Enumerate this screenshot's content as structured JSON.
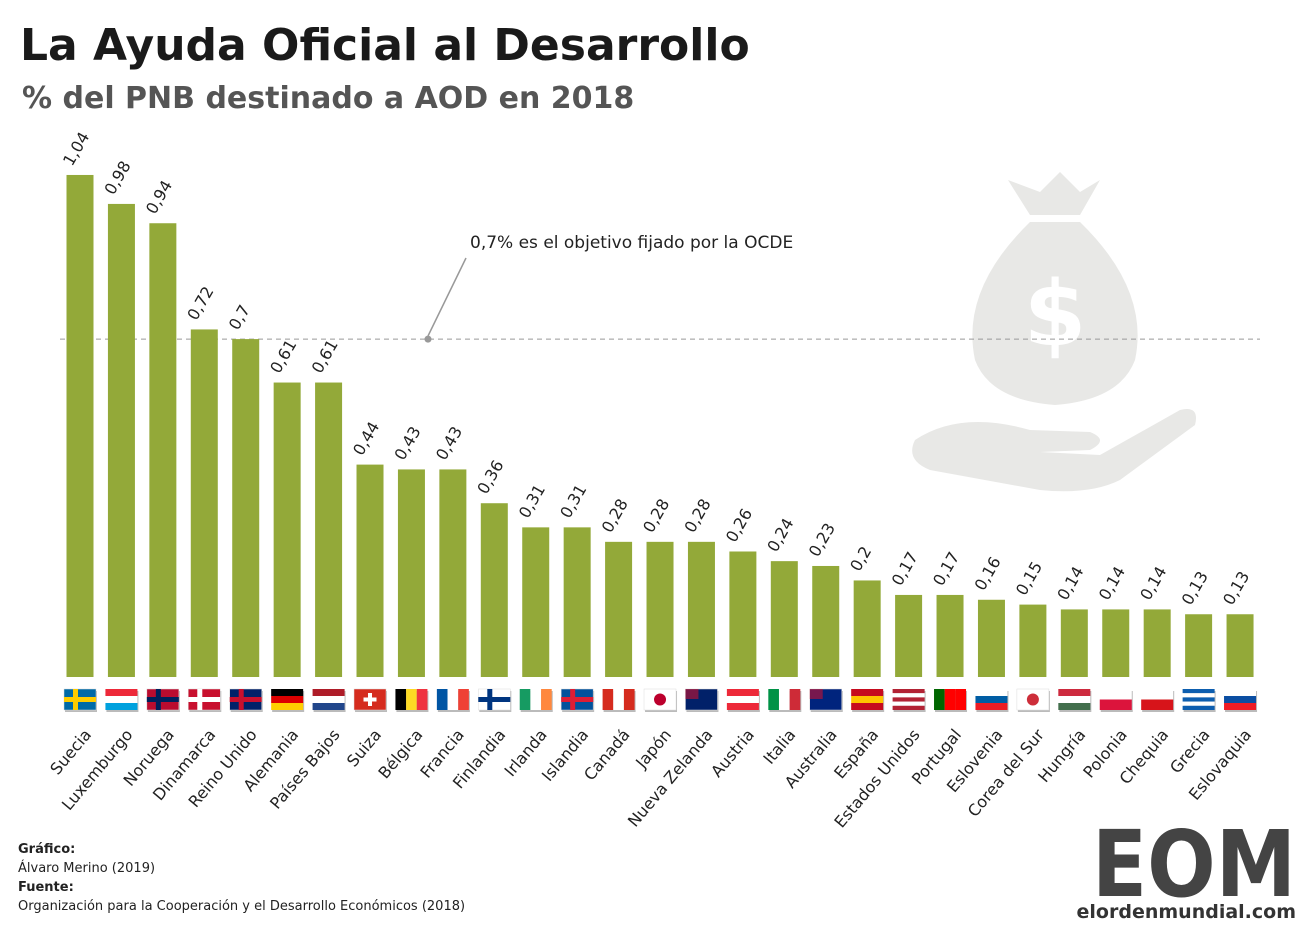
{
  "chart_data": {
    "type": "bar",
    "title": "La Ayuda Oficial al Desarrollo",
    "subtitle": "% del PNB destinado a AOD en 2018",
    "categories": [
      "Suecia",
      "Luxemburgo",
      "Noruega",
      "Dinamarca",
      "Reino Unido",
      "Alemania",
      "Países Bajos",
      "Suiza",
      "Bélgica",
      "Francia",
      "Finlandia",
      "Irlanda",
      "Islandia",
      "Canadá",
      "Japón",
      "Nueva Zelanda",
      "Austria",
      "Italia",
      "Australia",
      "España",
      "Estados Unidos",
      "Portugal",
      "Eslovenia",
      "Corea del Sur",
      "Hungría",
      "Polonia",
      "Chequia",
      "Grecia",
      "Eslovaquia"
    ],
    "values": [
      1.04,
      0.98,
      0.94,
      0.72,
      0.7,
      0.61,
      0.61,
      0.44,
      0.43,
      0.43,
      0.36,
      0.31,
      0.31,
      0.28,
      0.28,
      0.28,
      0.26,
      0.24,
      0.23,
      0.2,
      0.17,
      0.17,
      0.16,
      0.15,
      0.14,
      0.14,
      0.14,
      0.13,
      0.13
    ],
    "value_labels": [
      "1,04",
      "0,98",
      "0,94",
      "0,72",
      "0,7",
      "0,61",
      "0,61",
      "0,44",
      "0,43",
      "0,43",
      "0,36",
      "0,31",
      "0,31",
      "0,28",
      "0,28",
      "0,28",
      "0,26",
      "0,24",
      "0,23",
      "0,2",
      "0,17",
      "0,17",
      "0,16",
      "0,15",
      "0,14",
      "0,14",
      "0,14",
      "0,13",
      "0,13"
    ],
    "color": "#93a939",
    "ylim": [
      0,
      1.1
    ],
    "reference": {
      "value": 0.7,
      "label": "0,7% es el objetivo fijado por la OCDE"
    }
  },
  "footer": {
    "graphic_heading": "Gráfico:",
    "graphic_author": "Álvaro Merino (2019)",
    "source_heading": "Fuente:",
    "source": "Organización para la Cooperación y el Desarrollo Económicos (2018)"
  },
  "logo": {
    "mark": "EOM",
    "site": "elordenmundial.com"
  }
}
